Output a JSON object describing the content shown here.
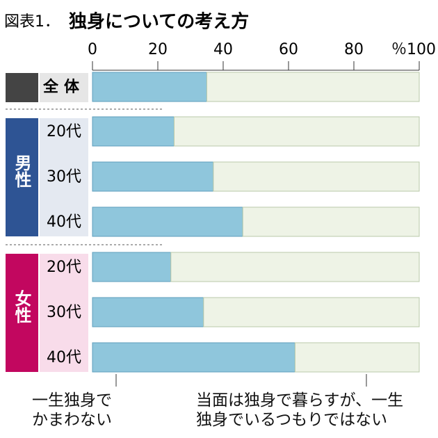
{
  "chart_data": {
    "type": "stacked-bar-horizontal",
    "figure_label": "図表1．",
    "title": "独身についての考え方",
    "categories": [
      "全体",
      "20代",
      "30代",
      "40代",
      "20代",
      "30代",
      "40代"
    ],
    "groups": [
      "男性",
      "女性"
    ],
    "series": [
      {
        "name": "一生独身で\nかまわない",
        "color": "#8fc6dc",
        "values": [
          35,
          25,
          37,
          46,
          24,
          34,
          62
        ]
      },
      {
        "name": "当面は独身で暮らすが、一生\n独身でいるつもりではない",
        "color": "#eef3e6",
        "values": [
          65,
          75,
          63,
          54,
          76,
          66,
          38
        ]
      }
    ],
    "xlim": [
      0,
      100
    ],
    "xticks": [
      0,
      20,
      40,
      60,
      80,
      {
        "value": 100,
        "label": "％100"
      }
    ]
  }
}
